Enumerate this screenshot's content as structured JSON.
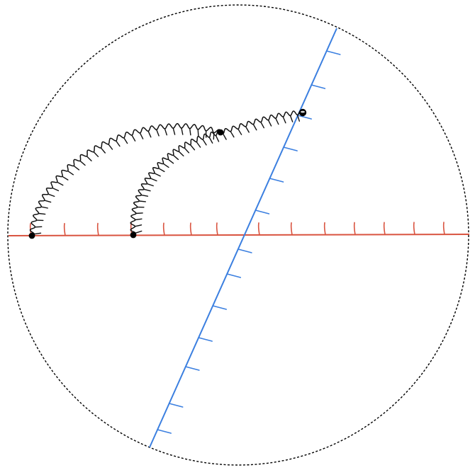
{
  "diagram": {
    "colors": {
      "boundary": "#000000",
      "horizontal_line": "#d9533f",
      "tilted_line": "#3b7fe0",
      "curves": "#111111",
      "points": "#000000"
    },
    "boundary_style": "dashed-circle",
    "horizontal_tick_count": 14,
    "tilted_tick_count": 13,
    "points": [
      {
        "id": "p1",
        "on": "horizontal-line",
        "style": "solid"
      },
      {
        "id": "p2",
        "on": "horizontal-line",
        "style": "solid"
      },
      {
        "id": "p3",
        "on": "interior",
        "style": "solid"
      },
      {
        "id": "p4",
        "on": "tilted-line",
        "style": "ringed"
      }
    ],
    "curves": [
      {
        "id": "outer-arc",
        "from": "p1",
        "to": "p3",
        "style": "wavy-with-hairs"
      },
      {
        "id": "inner-arc",
        "from": "p2",
        "to": "p3",
        "style": "wavy-with-hairs"
      },
      {
        "id": "short-arc",
        "from": "p3",
        "to": "p4",
        "style": "wavy-with-hairs"
      }
    ]
  }
}
